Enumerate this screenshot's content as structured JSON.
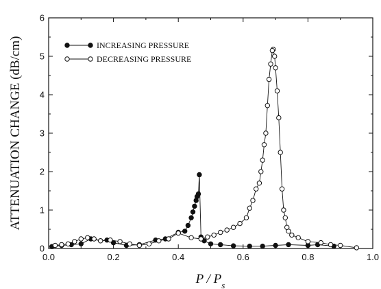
{
  "chart_data": {
    "type": "scatter",
    "ylabel": "ATTENUATION CHANGE (dB/cm)",
    "xlabel_base": "P / P",
    "xlabel_sub": "s",
    "xlim": [
      0.0,
      1.0
    ],
    "ylim": [
      0,
      6
    ],
    "x_ticks": [
      "0.0",
      "0.2",
      "0.4",
      "0.6",
      "0.8",
      "1.0"
    ],
    "y_ticks": [
      "0",
      "1",
      "2",
      "3",
      "4",
      "5",
      "6"
    ],
    "grid": false,
    "legend_position": "top-left",
    "series": [
      {
        "name": "INCREASING PRESSURE",
        "marker": "filled-circle",
        "points": [
          [
            0.01,
            0.05
          ],
          [
            0.04,
            0.08
          ],
          [
            0.07,
            0.1
          ],
          [
            0.1,
            0.12
          ],
          [
            0.13,
            0.25
          ],
          [
            0.16,
            0.2
          ],
          [
            0.18,
            0.22
          ],
          [
            0.2,
            0.15
          ],
          [
            0.24,
            0.08
          ],
          [
            0.28,
            0.1
          ],
          [
            0.33,
            0.22
          ],
          [
            0.36,
            0.25
          ],
          [
            0.4,
            0.42
          ],
          [
            0.42,
            0.45
          ],
          [
            0.43,
            0.6
          ],
          [
            0.44,
            0.8
          ],
          [
            0.445,
            0.95
          ],
          [
            0.45,
            1.1
          ],
          [
            0.455,
            1.25
          ],
          [
            0.458,
            1.35
          ],
          [
            0.462,
            1.42
          ],
          [
            0.465,
            1.92
          ],
          [
            0.47,
            0.3
          ],
          [
            0.48,
            0.2
          ],
          [
            0.5,
            0.12
          ],
          [
            0.53,
            0.1
          ],
          [
            0.57,
            0.07
          ],
          [
            0.62,
            0.06
          ],
          [
            0.66,
            0.06
          ],
          [
            0.7,
            0.08
          ],
          [
            0.74,
            0.1
          ],
          [
            0.8,
            0.08
          ],
          [
            0.83,
            0.1
          ],
          [
            0.88,
            0.06
          ]
        ]
      },
      {
        "name": "DECREASING PRESSURE",
        "marker": "open-circle",
        "points": [
          [
            0.95,
            0.02
          ],
          [
            0.9,
            0.08
          ],
          [
            0.87,
            0.1
          ],
          [
            0.84,
            0.15
          ],
          [
            0.8,
            0.18
          ],
          [
            0.77,
            0.28
          ],
          [
            0.75,
            0.35
          ],
          [
            0.74,
            0.45
          ],
          [
            0.735,
            0.55
          ],
          [
            0.73,
            0.8
          ],
          [
            0.725,
            1.0
          ],
          [
            0.72,
            1.55
          ],
          [
            0.715,
            2.5
          ],
          [
            0.71,
            3.4
          ],
          [
            0.705,
            4.1
          ],
          [
            0.7,
            4.7
          ],
          [
            0.697,
            5.0
          ],
          [
            0.693,
            5.18
          ],
          [
            0.69,
            5.15
          ],
          [
            0.685,
            4.8
          ],
          [
            0.68,
            4.4
          ],
          [
            0.675,
            3.72
          ],
          [
            0.67,
            3.0
          ],
          [
            0.665,
            2.7
          ],
          [
            0.66,
            2.3
          ],
          [
            0.655,
            2.0
          ],
          [
            0.65,
            1.7
          ],
          [
            0.64,
            1.55
          ],
          [
            0.63,
            1.25
          ],
          [
            0.62,
            1.05
          ],
          [
            0.61,
            0.8
          ],
          [
            0.59,
            0.65
          ],
          [
            0.57,
            0.55
          ],
          [
            0.55,
            0.48
          ],
          [
            0.53,
            0.42
          ],
          [
            0.51,
            0.35
          ],
          [
            0.49,
            0.3
          ],
          [
            0.47,
            0.25
          ],
          [
            0.44,
            0.28
          ],
          [
            0.4,
            0.4
          ],
          [
            0.37,
            0.25
          ],
          [
            0.34,
            0.2
          ],
          [
            0.31,
            0.12
          ],
          [
            0.28,
            0.08
          ],
          [
            0.25,
            0.12
          ],
          [
            0.22,
            0.18
          ],
          [
            0.19,
            0.22
          ],
          [
            0.16,
            0.2
          ],
          [
            0.14,
            0.25
          ],
          [
            0.12,
            0.28
          ],
          [
            0.1,
            0.25
          ],
          [
            0.08,
            0.18
          ],
          [
            0.06,
            0.12
          ],
          [
            0.04,
            0.1
          ],
          [
            0.02,
            0.08
          ]
        ]
      }
    ]
  }
}
